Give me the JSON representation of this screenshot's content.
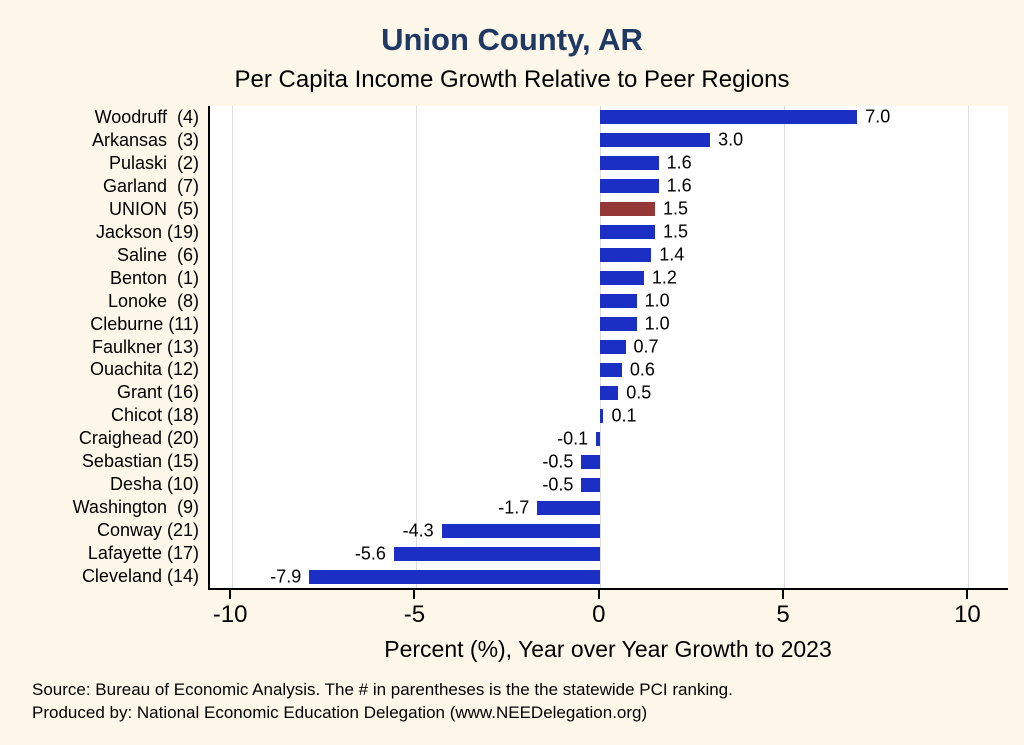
{
  "title": "Union County, AR",
  "subtitle": "Per Capita Income Growth Relative to Peer Regions",
  "chart_data": {
    "type": "bar",
    "orientation": "horizontal",
    "title": "Union County, AR",
    "subtitle": "Per Capita Income Growth Relative to Peer Regions",
    "categories": [
      "Woodruff  (4)",
      "Arkansas  (3)",
      "Pulaski  (2)",
      "Garland  (7)",
      "UNION  (5)",
      "Jackson (19)",
      "Saline  (6)",
      "Benton  (1)",
      "Lonoke  (8)",
      "Cleburne (11)",
      "Faulkner (13)",
      "Ouachita (12)",
      "Grant (16)",
      "Chicot (18)",
      "Craighead (20)",
      "Sebastian (15)",
      "Desha (10)",
      "Washington  (9)",
      "Conway (21)",
      "Lafayette (17)",
      "Cleveland (14)"
    ],
    "values": [
      7.0,
      3.0,
      1.6,
      1.6,
      1.5,
      1.5,
      1.4,
      1.2,
      1.0,
      1.0,
      0.7,
      0.6,
      0.5,
      0.1,
      -0.1,
      -0.5,
      -0.5,
      -1.7,
      -4.3,
      -5.6,
      -7.9
    ],
    "highlight_index": 4,
    "bar_colors": {
      "default": "#1c2fc4",
      "highlight": "#953735"
    },
    "xlabel": "Percent (%), Year over Year Growth to 2023",
    "xlim": [
      -10.6,
      11.1
    ],
    "xticks": [
      -10,
      -5,
      0,
      5,
      10
    ],
    "grid": true,
    "legend_position": "none"
  },
  "footer": {
    "line1": "Source: Bureau of Economic Analysis. The # in parentheses is the the statewide PCI ranking.",
    "line2": "Produced by: National Economic Education Delegation (www.NEEDelegation.org)"
  },
  "colors": {
    "background": "#fcf7e8",
    "plot_background": "#ffffff",
    "title": "#1f3864"
  }
}
